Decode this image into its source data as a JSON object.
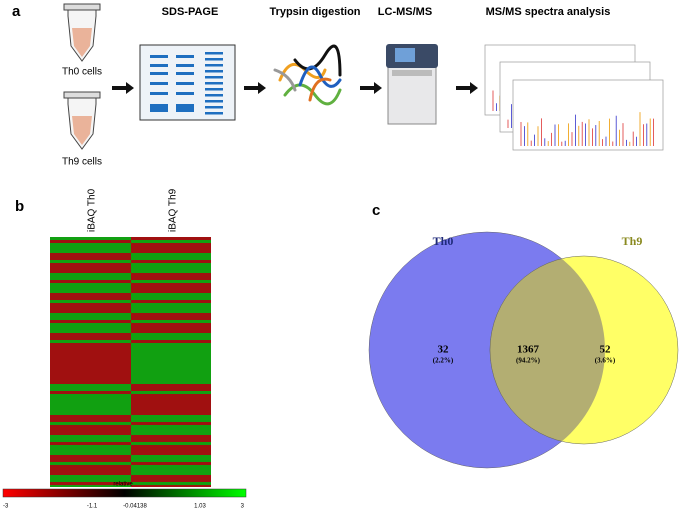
{
  "panel_a": {
    "label": "a",
    "tube_labels": [
      "Th0 cells",
      "Th9 cells"
    ],
    "steps": [
      "SDS-PAGE",
      "Trypsin digestion",
      "LC-MS/MS",
      "MS/MS spectra analysis"
    ]
  },
  "panel_b": {
    "label": "b",
    "columns": [
      "iBAQ Th0",
      "iBAQ Th9"
    ],
    "colorbar": {
      "title": "relative",
      "ticks": [
        "-3",
        "-1.1",
        "-0.04138",
        "1.03",
        "3"
      ]
    }
  },
  "panel_c": {
    "label": "c",
    "sets": [
      {
        "name": "Th0",
        "color": "#7b7bef"
      },
      {
        "name": "Th9",
        "color": "#ffff66"
      }
    ],
    "overlap_color": "#b3ae72",
    "regions": [
      {
        "count": "32",
        "percent": "(2.2%)"
      },
      {
        "count": "1367",
        "percent": "(94.2%)"
      },
      {
        "count": "52",
        "percent": "(3.6%)"
      }
    ]
  }
}
